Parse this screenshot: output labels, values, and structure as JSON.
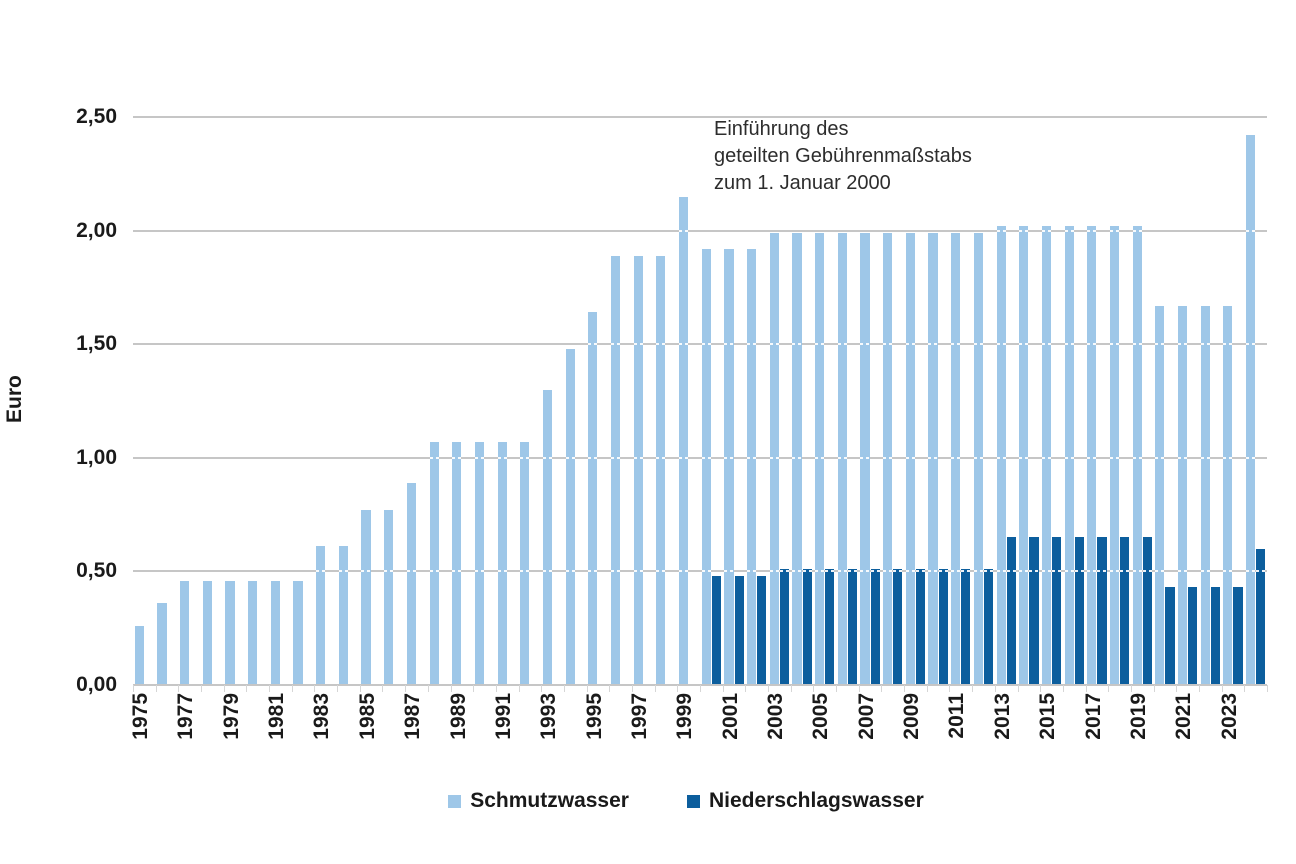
{
  "page": {
    "background": "#ffffff",
    "text_color": "#1a1a1a"
  },
  "chart_data": {
    "type": "bar",
    "title": "",
    "xlabel": "",
    "ylabel": "Euro",
    "ylim": [
      0,
      2.5
    ],
    "grid": true,
    "gridline_color": "#c6c6c6",
    "legend_position": "bottom",
    "ytick_values": [
      0,
      0.5,
      1,
      1.5,
      2,
      2.5
    ],
    "ytick_labels": [
      "0,00",
      "0,50",
      "1,00",
      "1,50",
      "2,00",
      "2,50"
    ],
    "xtick_labels": [
      "1975",
      "1977",
      "1979",
      "1981",
      "1983",
      "1985",
      "1987",
      "1989",
      "1991",
      "1993",
      "1995",
      "1997",
      "1999",
      "2001",
      "2003",
      "2005",
      "2007",
      "2009",
      "2011",
      "2013",
      "2015",
      "2017",
      "2019",
      "2021",
      "2023"
    ],
    "annotation": "Einführung des\ngeteilten Gebührenmaßstabs\nzum 1. Januar 2000",
    "years": [
      1975,
      1976,
      1977,
      1978,
      1979,
      1980,
      1981,
      1982,
      1983,
      1984,
      1985,
      1986,
      1987,
      1988,
      1989,
      1990,
      1991,
      1992,
      1993,
      1994,
      1995,
      1996,
      1997,
      1998,
      1999,
      2000,
      2001,
      2002,
      2003,
      2004,
      2005,
      2006,
      2007,
      2008,
      2009,
      2010,
      2011,
      2012,
      2013,
      2014,
      2015,
      2016,
      2017,
      2018,
      2019,
      2020,
      2021,
      2022,
      2023,
      2024
    ],
    "series": [
      {
        "name": "Schmutzwasser",
        "color": "#9ec7e8",
        "values": [
          0.26,
          0.36,
          0.46,
          0.46,
          0.46,
          0.46,
          0.46,
          0.46,
          0.61,
          0.61,
          0.77,
          0.77,
          0.89,
          1.07,
          1.07,
          1.07,
          1.07,
          1.07,
          1.3,
          1.48,
          1.64,
          1.89,
          1.89,
          1.89,
          2.15,
          1.92,
          1.92,
          1.92,
          1.99,
          1.99,
          1.99,
          1.99,
          1.99,
          1.99,
          1.99,
          1.99,
          1.99,
          1.99,
          2.02,
          2.02,
          2.02,
          2.02,
          2.02,
          2.02,
          2.02,
          1.67,
          1.67,
          1.67,
          1.67,
          2.42
        ]
      },
      {
        "name": "Niederschlagswasser",
        "color": "#0c5e9d",
        "values": [
          null,
          null,
          null,
          null,
          null,
          null,
          null,
          null,
          null,
          null,
          null,
          null,
          null,
          null,
          null,
          null,
          null,
          null,
          null,
          null,
          null,
          null,
          null,
          null,
          null,
          0.48,
          0.48,
          0.48,
          0.51,
          0.51,
          0.51,
          0.51,
          0.51,
          0.51,
          0.51,
          0.51,
          0.51,
          0.51,
          0.65,
          0.65,
          0.65,
          0.65,
          0.65,
          0.65,
          0.65,
          0.43,
          0.43,
          0.43,
          0.43,
          0.6
        ]
      }
    ]
  }
}
